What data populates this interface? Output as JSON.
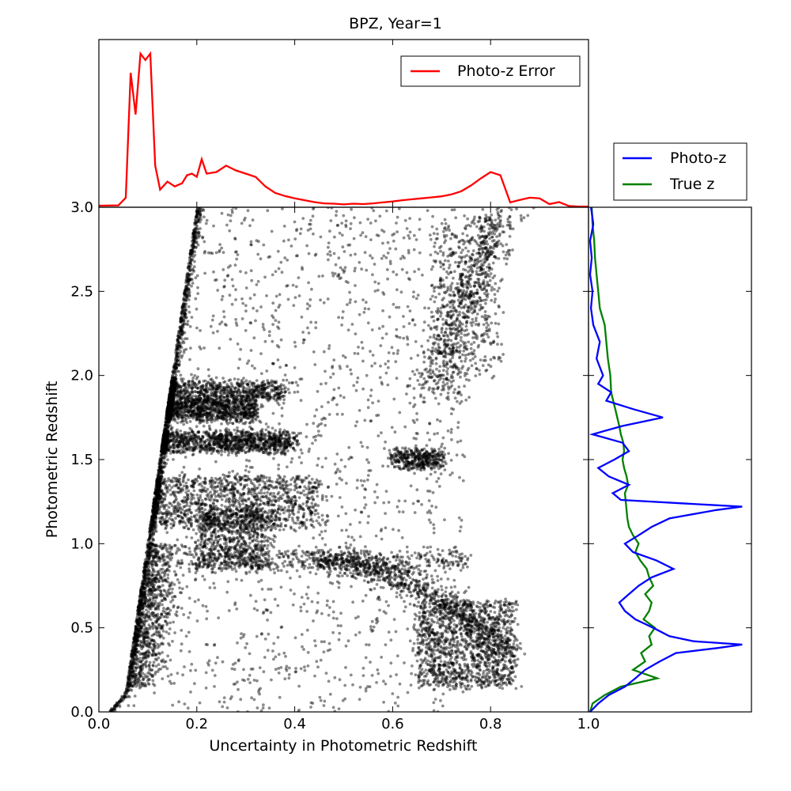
{
  "chart_data": [
    {
      "panel": "main",
      "type": "scatter",
      "title": "BPZ, Year=1",
      "xlabel": "Uncertainty in Photometric Redshift",
      "ylabel": "Photometric Redshift",
      "xlim": [
        0.0,
        1.0
      ],
      "ylim": [
        0.0,
        3.0
      ],
      "xticks": [
        "0.0",
        "0.2",
        "0.4",
        "0.6",
        "0.8",
        "1.0"
      ],
      "yticks": [
        "0.0",
        "0.5",
        "1.0",
        "1.5",
        "2.0",
        "2.5",
        "3.0"
      ],
      "grid": false,
      "point_color": "#000000",
      "point_opacity": 0.45,
      "boundary_line": {
        "x": [
          0.02,
          0.055,
          0.2
        ],
        "y": [
          0.0,
          0.12,
          3.0
        ]
      },
      "dense_clusters": [
        {
          "x": [
            0.06,
            0.4
          ],
          "y": [
            1.55,
            1.66
          ],
          "density": "very high"
        },
        {
          "x": [
            0.08,
            0.32
          ],
          "y": [
            1.74,
            1.86
          ],
          "density": "very high"
        },
        {
          "x": [
            0.07,
            0.38
          ],
          "y": [
            1.86,
            1.96
          ],
          "density": "high"
        },
        {
          "x": [
            0.06,
            0.45
          ],
          "y": [
            1.1,
            1.4
          ],
          "density": "very high"
        },
        {
          "x": [
            0.2,
            0.35
          ],
          "y": [
            0.85,
            1.2
          ],
          "density": "high"
        },
        {
          "x": [
            0.2,
            0.75
          ],
          "y": [
            0.85,
            0.95
          ],
          "density": "medium"
        },
        {
          "x": [
            0.65,
            0.85
          ],
          "y": [
            0.15,
            0.65
          ],
          "density": "very high"
        },
        {
          "x": [
            0.6,
            0.7
          ],
          "y": [
            1.45,
            1.55
          ],
          "density": "medium"
        },
        {
          "x": [
            0.68,
            0.82
          ],
          "y": [
            2.0,
            2.9
          ],
          "density": "medium"
        }
      ]
    },
    {
      "panel": "top-marginal",
      "type": "line",
      "xlim": [
        0.0,
        1.0
      ],
      "legend_position": "top-right",
      "series": [
        {
          "name": "Photo-z Error",
          "color": "#ff0000",
          "x": [
            0.0,
            0.04,
            0.055,
            0.065,
            0.075,
            0.085,
            0.095,
            0.105,
            0.115,
            0.125,
            0.14,
            0.155,
            0.17,
            0.18,
            0.19,
            0.2,
            0.21,
            0.22,
            0.24,
            0.26,
            0.28,
            0.3,
            0.32,
            0.34,
            0.36,
            0.38,
            0.4,
            0.42,
            0.44,
            0.46,
            0.48,
            0.5,
            0.52,
            0.54,
            0.56,
            0.58,
            0.6,
            0.62,
            0.64,
            0.66,
            0.68,
            0.7,
            0.72,
            0.74,
            0.76,
            0.78,
            0.8,
            0.82,
            0.84,
            0.86,
            0.88,
            0.9,
            0.92,
            0.94,
            0.96,
            0.98,
            1.0
          ],
          "values": [
            0.5,
            0.6,
            3.0,
            42.0,
            29.0,
            48.0,
            46.0,
            48.0,
            13.0,
            5.5,
            8.0,
            6.5,
            7.5,
            10.0,
            10.5,
            9.5,
            15.0,
            10.5,
            11.0,
            13.0,
            11.5,
            10.5,
            9.5,
            6.5,
            4.5,
            3.5,
            2.8,
            2.2,
            1.6,
            1.2,
            1.1,
            0.9,
            1.1,
            1.0,
            1.2,
            1.5,
            1.8,
            2.2,
            2.5,
            2.8,
            3.1,
            3.4,
            4.0,
            5.0,
            6.8,
            9.0,
            11.0,
            10.0,
            1.5,
            2.3,
            3.0,
            2.8,
            1.0,
            1.6,
            0.4,
            0.2,
            0.2
          ]
        }
      ]
    },
    {
      "panel": "right-marginal",
      "type": "line",
      "ylim": [
        0.0,
        3.0
      ],
      "y_tick_labels": [
        "3.0"
      ],
      "x_tick_labels": [
        "1.0"
      ],
      "legend_position": "above",
      "series": [
        {
          "name": "Photo-z",
          "color": "#0000ff",
          "y": [
            0.0,
            0.05,
            0.1,
            0.15,
            0.2,
            0.25,
            0.3,
            0.35,
            0.38,
            0.4,
            0.42,
            0.45,
            0.5,
            0.55,
            0.6,
            0.65,
            0.7,
            0.75,
            0.8,
            0.85,
            0.9,
            0.95,
            1.0,
            1.05,
            1.1,
            1.15,
            1.2,
            1.22,
            1.24,
            1.26,
            1.3,
            1.35,
            1.4,
            1.45,
            1.5,
            1.55,
            1.6,
            1.65,
            1.7,
            1.75,
            1.8,
            1.85,
            1.9,
            1.95,
            2.0,
            2.1,
            2.2,
            2.3,
            2.4,
            2.5,
            2.6,
            2.7,
            2.8,
            2.9,
            3.0
          ],
          "values": [
            2,
            12,
            25,
            45,
            58,
            70,
            88,
            108,
            160,
            190,
            130,
            100,
            80,
            58,
            45,
            38,
            50,
            62,
            78,
            105,
            84,
            55,
            45,
            62,
            78,
            100,
            158,
            190,
            115,
            40,
            30,
            50,
            25,
            12,
            32,
            50,
            42,
            5,
            42,
            92,
            55,
            22,
            28,
            12,
            18,
            10,
            14,
            6,
            3,
            5,
            2,
            4,
            2,
            6,
            3
          ]
        },
        {
          "name": "True z",
          "color": "#008000",
          "y": [
            0.0,
            0.05,
            0.1,
            0.15,
            0.2,
            0.25,
            0.3,
            0.35,
            0.4,
            0.45,
            0.5,
            0.55,
            0.6,
            0.65,
            0.7,
            0.75,
            0.8,
            0.85,
            0.9,
            0.95,
            1.0,
            1.05,
            1.1,
            1.15,
            1.2,
            1.25,
            1.3,
            1.35,
            1.4,
            1.45,
            1.5,
            1.55,
            1.6,
            1.65,
            1.7,
            1.8,
            1.9,
            2.0,
            2.1,
            2.2,
            2.3,
            2.4,
            2.5,
            2.6,
            2.7,
            2.8,
            2.9,
            3.0
          ],
          "values": [
            2,
            5,
            20,
            40,
            85,
            55,
            70,
            65,
            78,
            75,
            82,
            68,
            75,
            78,
            70,
            80,
            75,
            72,
            64,
            58,
            62,
            55,
            50,
            48,
            47,
            46,
            45,
            49,
            47,
            44,
            42,
            44,
            43,
            40,
            38,
            33,
            28,
            27,
            24,
            22,
            20,
            14,
            12,
            10,
            8,
            7,
            5,
            4
          ]
        }
      ]
    }
  ]
}
